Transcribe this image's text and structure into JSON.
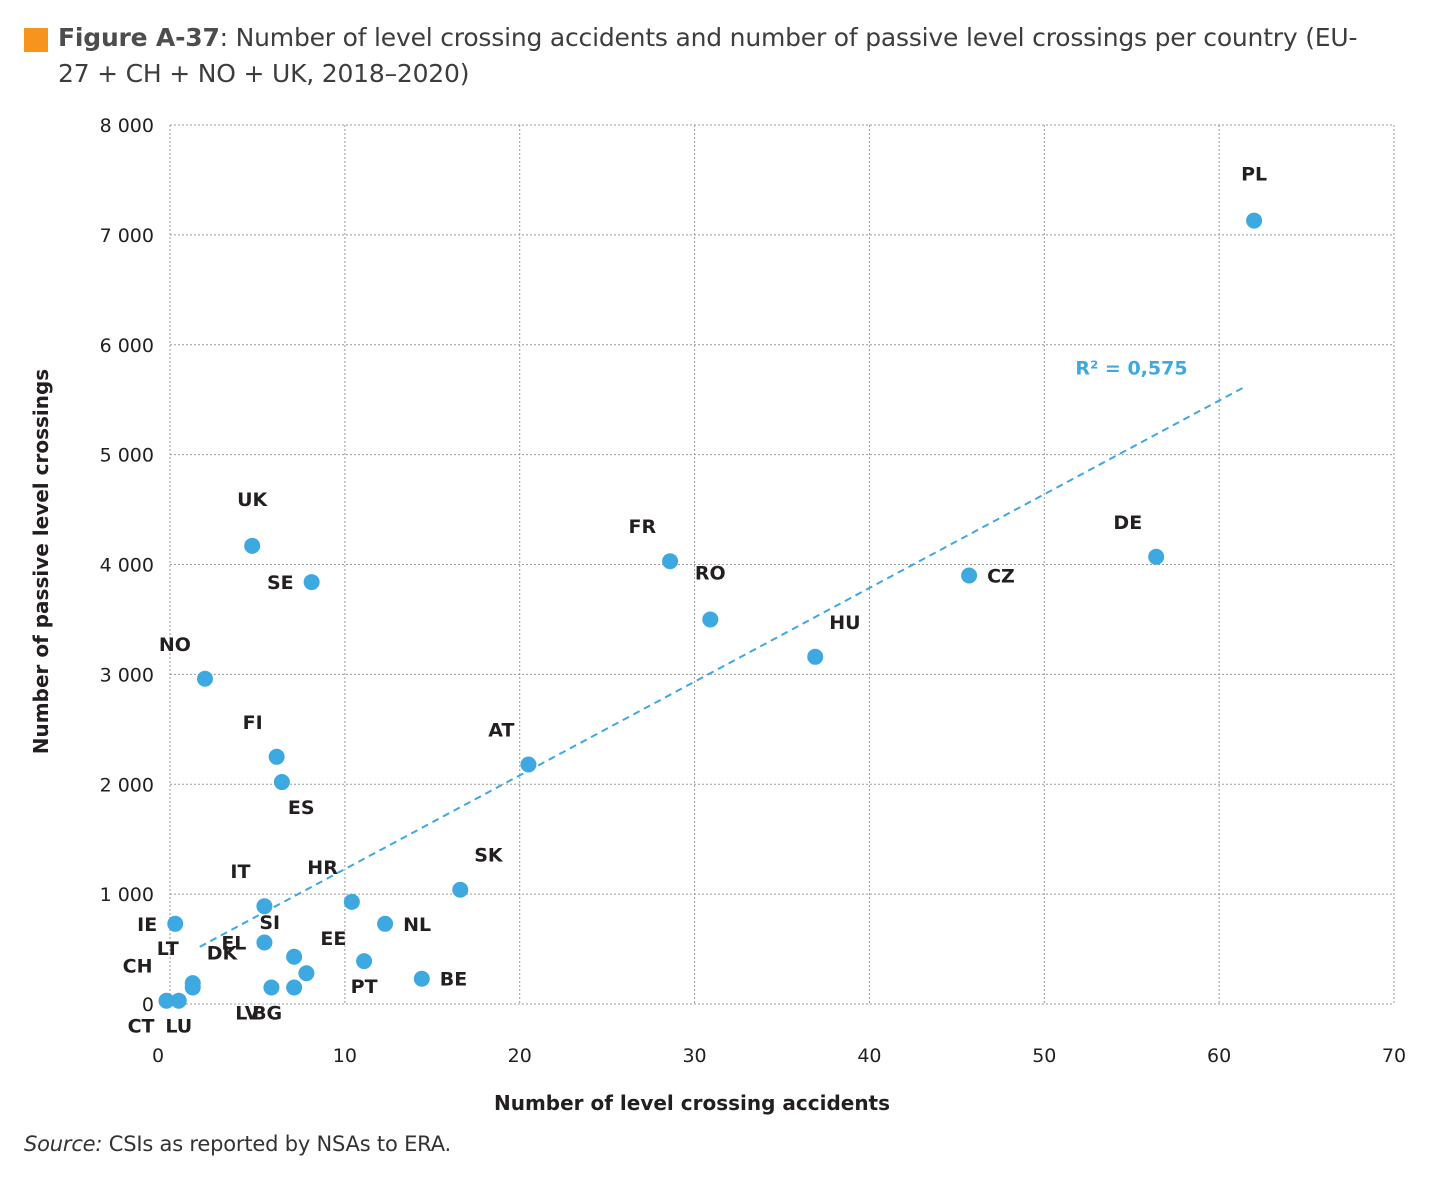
{
  "title": {
    "figure_label": "Figure A-37",
    "separator": ": ",
    "text": "Number of level crossing accidents and number of passive level crossings per country (EU-27 + CH + NO + UK, 2018–2020)"
  },
  "source": {
    "prefix": "Source:",
    "text": " CSIs as reported by NSAs to ERA."
  },
  "colors": {
    "accent": "#f7941d",
    "points": "#3ea8e0",
    "trend": "#3ea8e0",
    "grid": "#9a9a9a"
  },
  "chart_data": {
    "type": "scatter",
    "xlabel": "Number of level crossing accidents",
    "ylabel": "Number of passive level crossings",
    "xlim": [
      0,
      70
    ],
    "ylim": [
      0,
      8000
    ],
    "x_ticks": [
      0,
      10,
      20,
      30,
      40,
      50,
      60,
      70
    ],
    "y_ticks": [
      0,
      1000,
      2000,
      3000,
      4000,
      5000,
      6000,
      7000,
      8000
    ],
    "x_tick_labels": [
      "0",
      "10",
      "20",
      "30",
      "40",
      "50",
      "60",
      "70"
    ],
    "y_tick_labels": [
      "0",
      "1 000",
      "2 000",
      "3 000",
      "4 000",
      "5 000",
      "6 000",
      "7 000",
      "8 000"
    ],
    "grid": true,
    "points": [
      {
        "label": "PL",
        "x": 62.0,
        "y": 7130,
        "label_pos": "above"
      },
      {
        "label": "DE",
        "x": 56.4,
        "y": 4070,
        "label_pos": "above-left"
      },
      {
        "label": "CZ",
        "x": 45.7,
        "y": 3900,
        "label_pos": "right"
      },
      {
        "label": "HU",
        "x": 36.9,
        "y": 3160,
        "label_pos": "above-right"
      },
      {
        "label": "FR",
        "x": 28.6,
        "y": 4030,
        "label_pos": "above-left"
      },
      {
        "label": "RO",
        "x": 30.9,
        "y": 3500,
        "label_pos": "above"
      },
      {
        "label": "AT",
        "x": 20.5,
        "y": 2180,
        "label_pos": "above-left"
      },
      {
        "label": "SK",
        "x": 16.6,
        "y": 1040,
        "label_pos": "above-right"
      },
      {
        "label": "UK",
        "x": 4.7,
        "y": 4170,
        "label_pos": "above"
      },
      {
        "label": "SE",
        "x": 8.1,
        "y": 3840,
        "label_pos": "left"
      },
      {
        "label": "NO",
        "x": 2.0,
        "y": 2960,
        "label_pos": "above-left"
      },
      {
        "label": "FI",
        "x": 6.1,
        "y": 2250,
        "label_pos": "above-left"
      },
      {
        "label": "ES",
        "x": 6.4,
        "y": 2020,
        "label_pos": "below-right"
      },
      {
        "label": "HR",
        "x": 10.4,
        "y": 930,
        "label_pos": "above-left"
      },
      {
        "label": "NL",
        "x": 12.3,
        "y": 730,
        "label_pos": "right"
      },
      {
        "label": "IT",
        "x": 5.4,
        "y": 890,
        "label_pos": "above-left"
      },
      {
        "label": "IE",
        "x": 0.3,
        "y": 730,
        "label_pos": "left"
      },
      {
        "label": "EL",
        "x": 5.4,
        "y": 560,
        "label_pos": "left"
      },
      {
        "label": "SI",
        "x": 7.1,
        "y": 430,
        "label_pos": "above-left"
      },
      {
        "label": "EE",
        "x": 7.8,
        "y": 280,
        "label_pos": "above-right"
      },
      {
        "label": "PT",
        "x": 11.1,
        "y": 390,
        "label_pos": "below"
      },
      {
        "label": "BE",
        "x": 14.4,
        "y": 230,
        "label_pos": "right"
      },
      {
        "label": "LT",
        "x": 1.3,
        "y": 190,
        "label_pos": "above-left"
      },
      {
        "label": "DK",
        "x": 1.3,
        "y": 150,
        "label_pos": "above-right"
      },
      {
        "label": "BG",
        "x": 7.1,
        "y": 150,
        "label_pos": "below-left"
      },
      {
        "label": "LV",
        "x": 5.8,
        "y": 150,
        "label_pos": "below-left"
      },
      {
        "label": "CH",
        "x": -0.2,
        "y": 30,
        "label_pos": "above-left"
      },
      {
        "label": "CT",
        "x": -0.2,
        "y": 30,
        "label_pos": "below-left"
      },
      {
        "label": "LU",
        "x": 0.5,
        "y": 30,
        "label_pos": "below"
      }
    ],
    "trendline": {
      "x": [
        1.7,
        61.5
      ],
      "y": [
        520,
        5620
      ],
      "r2_label": "R² = 0,575"
    }
  }
}
